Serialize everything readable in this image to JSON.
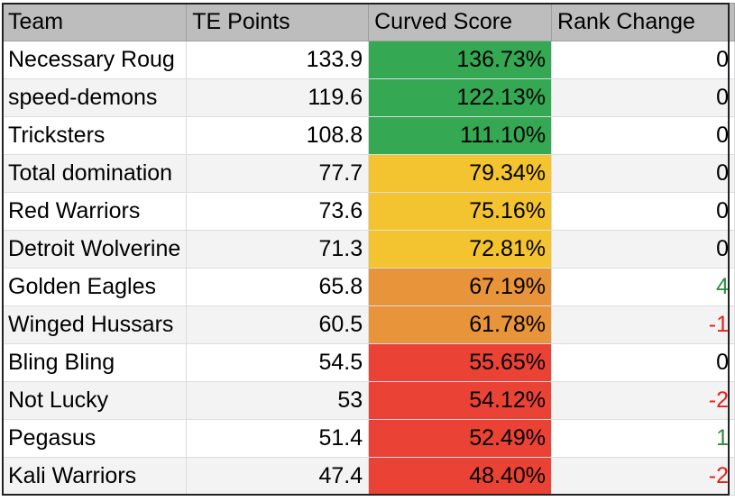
{
  "headers": [
    "Team",
    "TE Points",
    "Curved Score",
    "Rank Change"
  ],
  "colors": {
    "green": "#34a853",
    "yellow": "#f4c430",
    "orange": "#e8943a",
    "red": "#ea4335",
    "positive_text": "#2e8b3e",
    "negative_text": "#e0241b",
    "neutral_text": "#000000"
  },
  "rows": [
    {
      "team": "Necessary Roug",
      "te": "133.9",
      "curved": "136.73%",
      "rank": "0",
      "band": "green",
      "trend": "neutral"
    },
    {
      "team": "speed-demons",
      "te": "119.6",
      "curved": "122.13%",
      "rank": "0",
      "band": "green",
      "trend": "neutral"
    },
    {
      "team": "Tricksters",
      "te": "108.8",
      "curved": "111.10%",
      "rank": "0",
      "band": "green",
      "trend": "neutral"
    },
    {
      "team": "Total domination",
      "te": "77.7",
      "curved": "79.34%",
      "rank": "0",
      "band": "yellow",
      "trend": "neutral"
    },
    {
      "team": "Red Warriors",
      "te": "73.6",
      "curved": "75.16%",
      "rank": "0",
      "band": "yellow",
      "trend": "neutral"
    },
    {
      "team": "Detroit Wolverine",
      "te": "71.3",
      "curved": "72.81%",
      "rank": "0",
      "band": "yellow",
      "trend": "neutral"
    },
    {
      "team": "Golden Eagles",
      "te": "65.8",
      "curved": "67.19%",
      "rank": "4",
      "band": "orange",
      "trend": "positive"
    },
    {
      "team": "Winged Hussars",
      "te": "60.5",
      "curved": "61.78%",
      "rank": "-1",
      "band": "orange",
      "trend": "negative"
    },
    {
      "team": "Bling Bling",
      "te": "54.5",
      "curved": "55.65%",
      "rank": "0",
      "band": "red",
      "trend": "neutral"
    },
    {
      "team": "Not Lucky",
      "te": "53",
      "curved": "54.12%",
      "rank": "-2",
      "band": "red",
      "trend": "negative"
    },
    {
      "team": "Pegasus",
      "te": "51.4",
      "curved": "52.49%",
      "rank": "1",
      "band": "red",
      "trend": "positive"
    },
    {
      "team": "Kali Warriors",
      "te": "47.4",
      "curved": "48.40%",
      "rank": "-2",
      "band": "red",
      "trend": "negative"
    }
  ]
}
